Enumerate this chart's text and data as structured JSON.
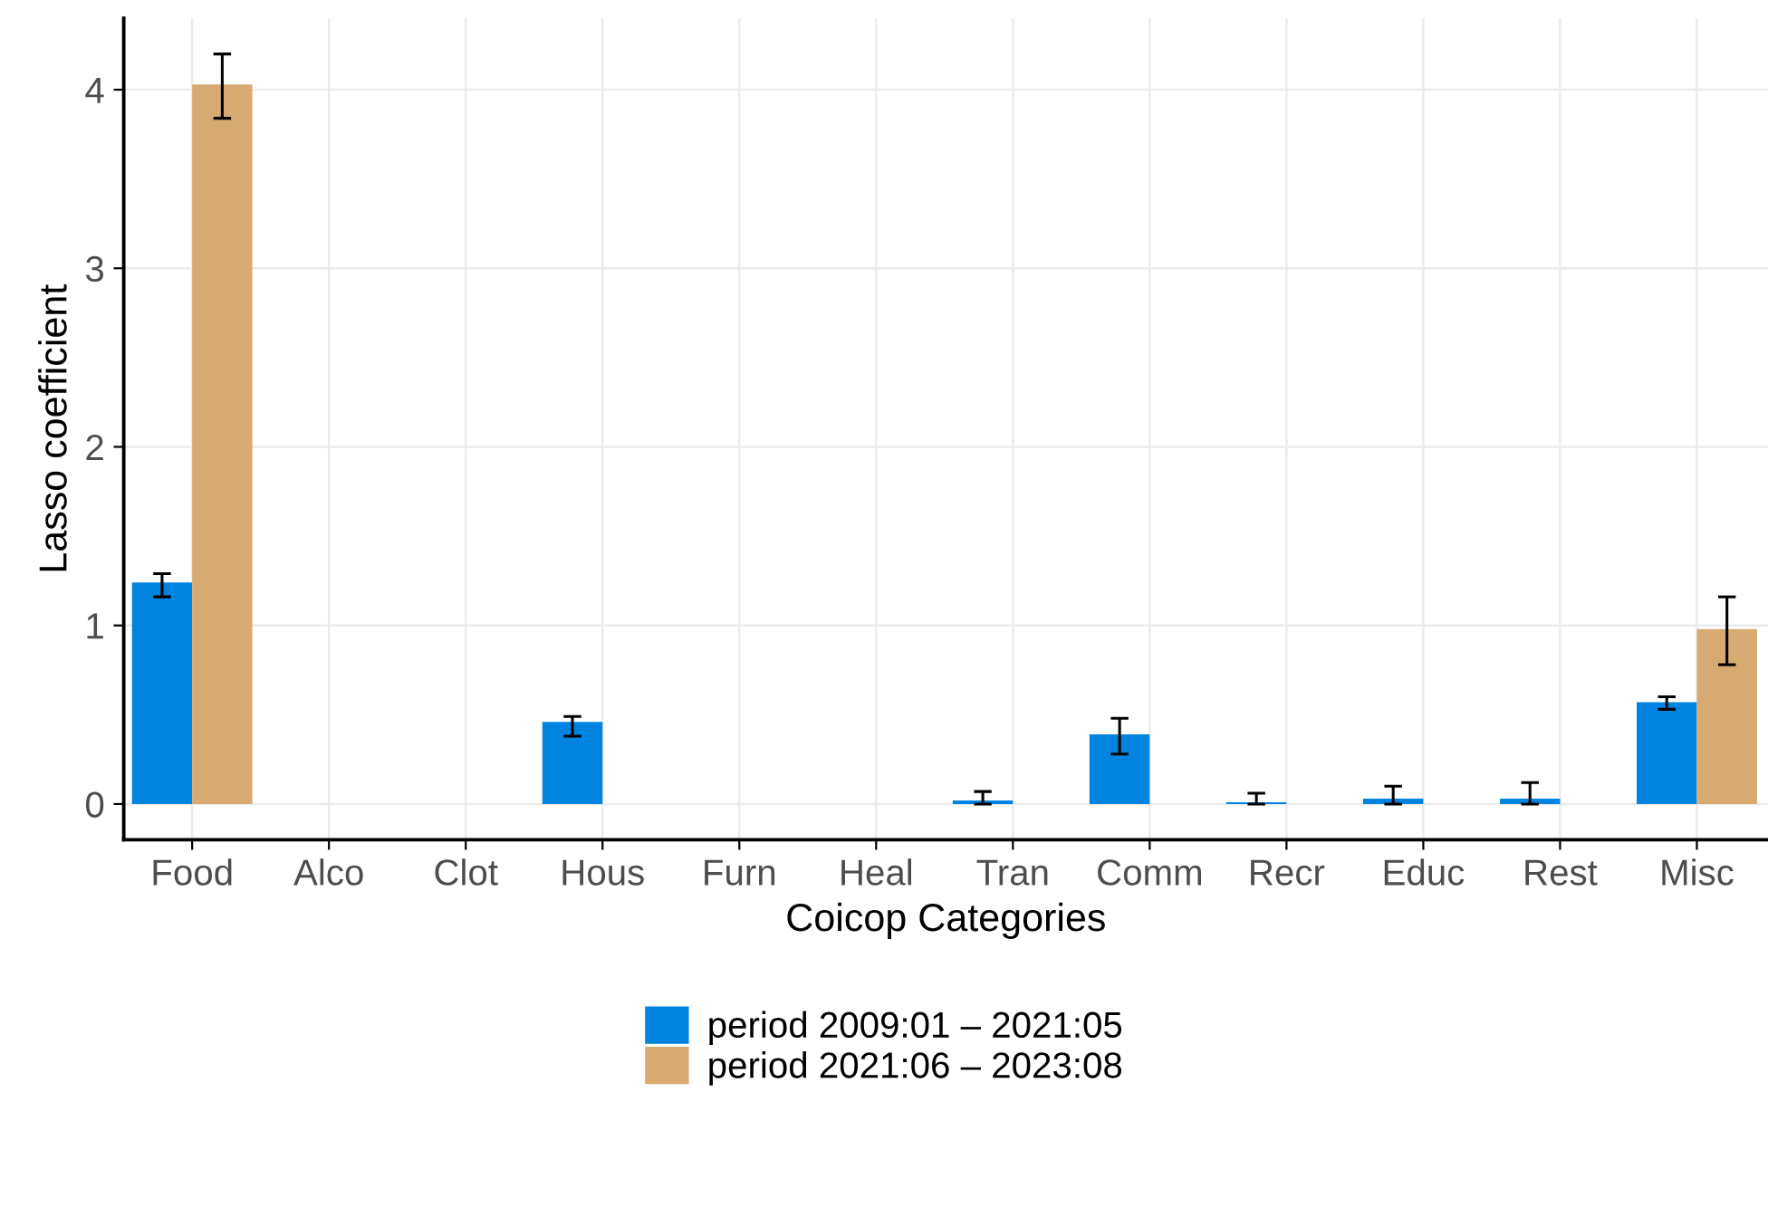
{
  "chart_data": {
    "type": "bar",
    "xlabel": "Coicop Categories",
    "ylabel": "Lasso coefficient",
    "categories": [
      "Food",
      "Alco",
      "Clot",
      "Hous",
      "Furn",
      "Heal",
      "Tran",
      "Comm",
      "Recr",
      "Educ",
      "Rest",
      "Misc"
    ],
    "series": [
      {
        "name": "period 2009:01 – 2021:05",
        "color": "#0084df",
        "values": [
          1.24,
          0,
          0,
          0.46,
          0,
          0,
          0.02,
          0.39,
          0.01,
          0.03,
          0.03,
          0.57
        ],
        "errors": [
          [
            1.16,
            1.29
          ],
          null,
          null,
          [
            0.38,
            0.49
          ],
          null,
          null,
          [
            0.0,
            0.07
          ],
          [
            0.28,
            0.48
          ],
          [
            0.0,
            0.06
          ],
          [
            0.0,
            0.1
          ],
          [
            0.0,
            0.12
          ],
          [
            0.53,
            0.6
          ]
        ]
      },
      {
        "name": "period 2021:06 – 2023:08",
        "color": "#d7aa72",
        "values": [
          4.03,
          0,
          0,
          0,
          0,
          0,
          0,
          0,
          0,
          0,
          0,
          0.98
        ],
        "errors": [
          [
            3.84,
            4.2
          ],
          null,
          null,
          null,
          null,
          null,
          null,
          null,
          null,
          null,
          null,
          [
            0.78,
            1.16
          ]
        ]
      }
    ],
    "ylim": [
      -0.2,
      4.4
    ],
    "yticks": [
      0,
      1,
      2,
      3,
      4
    ],
    "grid": true,
    "legend": "bottom"
  }
}
